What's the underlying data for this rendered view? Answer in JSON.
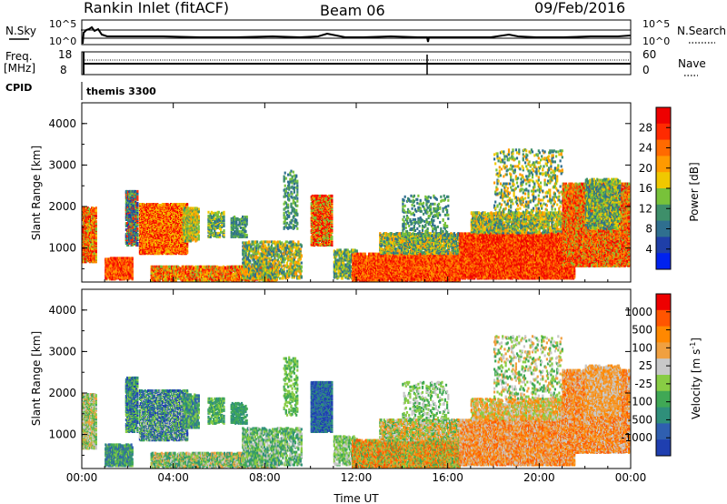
{
  "header": {
    "station": "Rankin Inlet (fitACF)",
    "beam": "Beam 06",
    "date": "09/Feb/2016"
  },
  "top_panels": {
    "nsky_label": "N.Sky",
    "nsky_ticks": [
      "10^5",
      "10^0"
    ],
    "nsearch_label": "N.Search",
    "nsearch_ticks": [
      "10^5",
      "10^0"
    ],
    "freq_label": "Freq.",
    "freq_unit": "[MHz]",
    "freq_ticks": [
      "18",
      "8"
    ],
    "nave_label": "Nave",
    "nave_ticks": [
      "60",
      "0"
    ],
    "cpid_label": "CPID",
    "cpid_value": "themis 3300"
  },
  "colors": {
    "power_scale": [
      "#0022ee",
      "#1f3fa8",
      "#2f6f8f",
      "#3e8f6a",
      "#78c23a",
      "#f0c800",
      "#ff9a00",
      "#ff6a00",
      "#ff2a00",
      "#ee0000"
    ],
    "velocity_scale": [
      "#1f3fb0",
      "#2f5fb0",
      "#2f8f7a",
      "#40a855",
      "#88cc44",
      "#c8c8c8",
      "#f0a040",
      "#ff8800",
      "#ff5500",
      "#ee0000"
    ]
  },
  "chart_data": [
    {
      "type": "heatmap",
      "panel": "power",
      "ylabel": "Slant Range [km]",
      "yticks": [
        "4000",
        "3000",
        "2000",
        "1000"
      ],
      "ylim": [
        180,
        4500
      ],
      "xlabel": "",
      "xticks": [
        "00:00",
        "04:00",
        "08:00",
        "12:00",
        "16:00",
        "20:00",
        "00:00"
      ],
      "xlim": [
        0,
        24
      ],
      "colorbar": {
        "label": "Power [dB]",
        "ticks": [
          "28",
          "24",
          "20",
          "16",
          "12",
          "8",
          "4"
        ],
        "range": [
          0,
          30
        ]
      }
    },
    {
      "type": "heatmap",
      "panel": "velocity",
      "ylabel": "Slant Range [km]",
      "yticks": [
        "4000",
        "3000",
        "2000",
        "1000"
      ],
      "ylim": [
        180,
        4500
      ],
      "xlabel": "Time UT",
      "xticks": [
        "00:00",
        "04:00",
        "08:00",
        "12:00",
        "16:00",
        "20:00",
        "00:00"
      ],
      "xlim": [
        0,
        24
      ],
      "colorbar": {
        "label": "Velocity [m s",
        "label_sup": "-1",
        "label_end": "]",
        "ticks": [
          "1000",
          "500",
          "100",
          "25",
          "-25",
          "-100",
          "-500",
          "-1000"
        ],
        "range": [
          -1200,
          1200
        ]
      }
    }
  ]
}
